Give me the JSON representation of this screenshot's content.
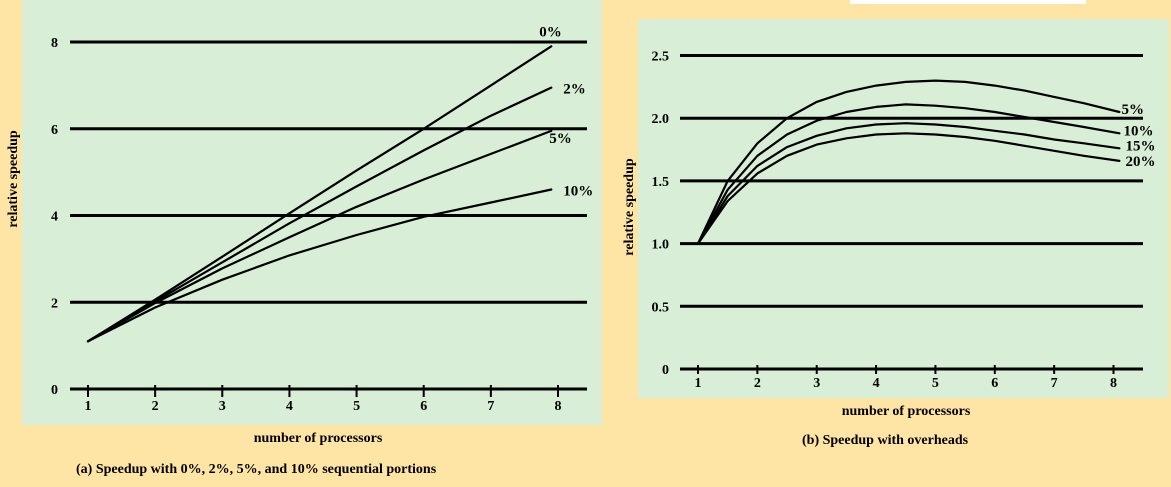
{
  "colors": {
    "page_background": "#FFE5A5",
    "panel_background": "#D8EED6",
    "line": "#000000"
  },
  "captions": {
    "left": "(a) Speedup with 0%, 2%, 5%, and 10% sequential portions",
    "right": "(b) Speedup with overheads"
  },
  "chart_data": [
    {
      "type": "line",
      "title": "",
      "xlabel": "number of processors",
      "ylabel": "relative speedup",
      "xlim": [
        1,
        8.7
      ],
      "ylim": [
        0,
        8.3
      ],
      "x_ticks": [
        1,
        2,
        3,
        4,
        5,
        6,
        7,
        8
      ],
      "y_ticks": [
        0,
        2,
        4,
        6,
        8
      ],
      "grid": true,
      "legend": "line-end labels",
      "series": [
        {
          "name": "0%",
          "x": [
            1,
            2,
            3,
            4,
            5,
            6,
            7,
            7.9
          ],
          "y": [
            1.1,
            2.06,
            3.05,
            4.05,
            5.04,
            6.0,
            7.0,
            7.9
          ]
        },
        {
          "name": "2%",
          "x": [
            1,
            2,
            3,
            4,
            5,
            6,
            7,
            7.9
          ],
          "y": [
            1.1,
            2.02,
            2.92,
            3.82,
            4.67,
            5.5,
            6.3,
            6.95
          ]
        },
        {
          "name": "5%",
          "x": [
            1,
            2,
            3,
            4,
            5,
            6,
            7,
            7.9
          ],
          "y": [
            1.1,
            1.98,
            2.78,
            3.5,
            4.2,
            4.83,
            5.42,
            5.95
          ]
        },
        {
          "name": "10%",
          "x": [
            1,
            2,
            3,
            4,
            5,
            6,
            7,
            7.9
          ],
          "y": [
            1.1,
            1.88,
            2.52,
            3.08,
            3.55,
            3.97,
            4.3,
            4.6
          ]
        }
      ]
    },
    {
      "type": "line",
      "title": "",
      "xlabel": "number of processors",
      "ylabel": "relative speedup",
      "xlim": [
        1,
        8.8
      ],
      "ylim": [
        0,
        2.6
      ],
      "x_ticks": [
        1,
        2,
        3,
        4,
        5,
        6,
        7,
        8
      ],
      "y_ticks": [
        0,
        0.5,
        1.0,
        1.5,
        2.0,
        2.5
      ],
      "y_tick_labels": [
        "0",
        "0.5",
        "1.0",
        "1.5",
        "2.0",
        "2.5"
      ],
      "grid": true,
      "legend": "line-end labels",
      "series": [
        {
          "name": "5%",
          "x": [
            1,
            1.5,
            2,
            2.5,
            3,
            3.5,
            4,
            4.5,
            5,
            5.5,
            6,
            6.5,
            7,
            7.5,
            8.1
          ],
          "y": [
            1.0,
            1.5,
            1.8,
            2.0,
            2.13,
            2.21,
            2.26,
            2.29,
            2.3,
            2.29,
            2.26,
            2.22,
            2.17,
            2.12,
            2.05
          ]
        },
        {
          "name": "10%",
          "x": [
            1,
            1.5,
            2,
            2.5,
            3,
            3.5,
            4,
            4.5,
            5,
            5.5,
            6,
            6.5,
            7,
            7.5,
            8.1
          ],
          "y": [
            1.0,
            1.43,
            1.7,
            1.87,
            1.98,
            2.05,
            2.09,
            2.11,
            2.1,
            2.08,
            2.05,
            2.01,
            1.97,
            1.93,
            1.88
          ]
        },
        {
          "name": "15%",
          "x": [
            1,
            1.5,
            2,
            2.5,
            3,
            3.5,
            4,
            4.5,
            5,
            5.5,
            6,
            6.5,
            7,
            7.5,
            8.1
          ],
          "y": [
            1.0,
            1.38,
            1.62,
            1.77,
            1.86,
            1.92,
            1.95,
            1.96,
            1.95,
            1.93,
            1.9,
            1.87,
            1.83,
            1.8,
            1.76
          ]
        },
        {
          "name": "20%",
          "x": [
            1,
            1.5,
            2,
            2.5,
            3,
            3.5,
            4,
            4.5,
            5,
            5.5,
            6,
            6.5,
            7,
            7.5,
            8.1
          ],
          "y": [
            1.0,
            1.34,
            1.56,
            1.7,
            1.79,
            1.84,
            1.87,
            1.88,
            1.87,
            1.85,
            1.82,
            1.78,
            1.74,
            1.7,
            1.66
          ]
        }
      ]
    }
  ]
}
